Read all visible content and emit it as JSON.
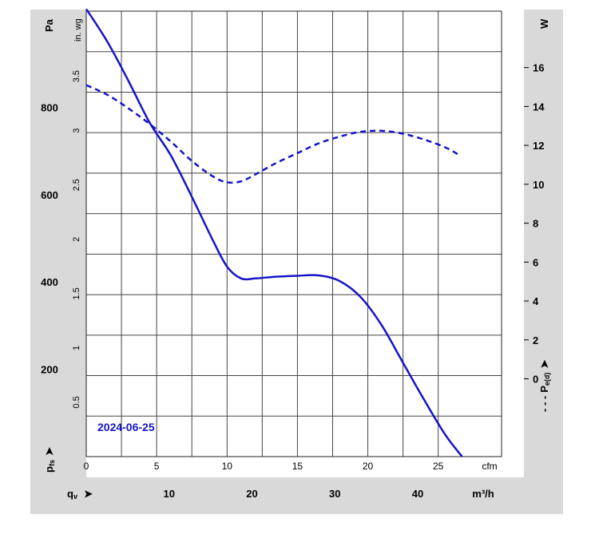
{
  "chart_data": {
    "type": "line",
    "date_label": "2024-06-25",
    "left_axis": {
      "unit_label": "Pa",
      "symbol": "p",
      "symbol_sub": "fs",
      "arrow": "➤",
      "range": [
        0,
        1020
      ],
      "ticks": [
        200,
        400,
        600,
        800
      ],
      "tick_labels": [
        "200",
        "400",
        "600",
        "800"
      ]
    },
    "inner_left_axis": {
      "unit_label": "in. wg",
      "range": [
        0,
        4.1
      ],
      "ticks": [
        0.5,
        1,
        1.5,
        2,
        2.5,
        3,
        3.5
      ],
      "tick_labels": [
        "0.5",
        "1",
        "1.5",
        "2",
        "2.5",
        "3",
        "3.5"
      ]
    },
    "right_axis": {
      "unit_label": "W",
      "symbol": "P",
      "symbol_sub": "e(d)",
      "prefix": "- - -",
      "arrow": "➤",
      "range": [
        -4,
        18.9
      ],
      "ticks": [
        0,
        2,
        4,
        6,
        8,
        10,
        12,
        14,
        16
      ],
      "tick_labels": [
        "0",
        "2",
        "4",
        "6",
        "8",
        "10",
        "12",
        "14",
        "16"
      ]
    },
    "x_axis_cfm": {
      "unit_label": "cfm",
      "range": [
        0,
        29.5
      ],
      "ticks": [
        0,
        5,
        10,
        15,
        20,
        25
      ],
      "tick_labels": [
        "0",
        "5",
        "10",
        "15",
        "20",
        "25"
      ]
    },
    "x_axis_m3h": {
      "unit_label": "m³/h",
      "symbol": "q",
      "symbol_sub": "v",
      "arrow": "➤",
      "ticks": [
        10,
        20,
        30,
        40
      ],
      "tick_labels": [
        "10",
        "20",
        "30",
        "40"
      ]
    },
    "series": [
      {
        "key": "pressure",
        "style": "solid",
        "color": "#1515c8",
        "axis": "left",
        "x_cfm": [
          0,
          1.5,
          3,
          4.5,
          6,
          7.5,
          9,
          10,
          11,
          12,
          13.5,
          15,
          16.5,
          18,
          19.5,
          21,
          22.5,
          24,
          25.5,
          26.7
        ],
        "y_pa": [
          1025,
          950,
          860,
          765,
          690,
          595,
          495,
          435,
          408,
          408,
          412,
          414,
          415,
          402,
          365,
          300,
          215,
          130,
          50,
          -5
        ]
      },
      {
        "key": "power",
        "style": "dashed",
        "color": "#1515c8",
        "axis": "right",
        "x_cfm": [
          0,
          1.5,
          3,
          4.5,
          6,
          7.5,
          9,
          10,
          11,
          12,
          13.5,
          15,
          16.5,
          18,
          19.5,
          21,
          22.5,
          24,
          25.5,
          26.5
        ],
        "y_w": [
          15.1,
          14.6,
          13.9,
          13.1,
          12.2,
          11.2,
          10.4,
          10.1,
          10.15,
          10.5,
          11.1,
          11.6,
          12.1,
          12.45,
          12.7,
          12.75,
          12.6,
          12.3,
          11.9,
          11.5
        ]
      }
    ]
  }
}
